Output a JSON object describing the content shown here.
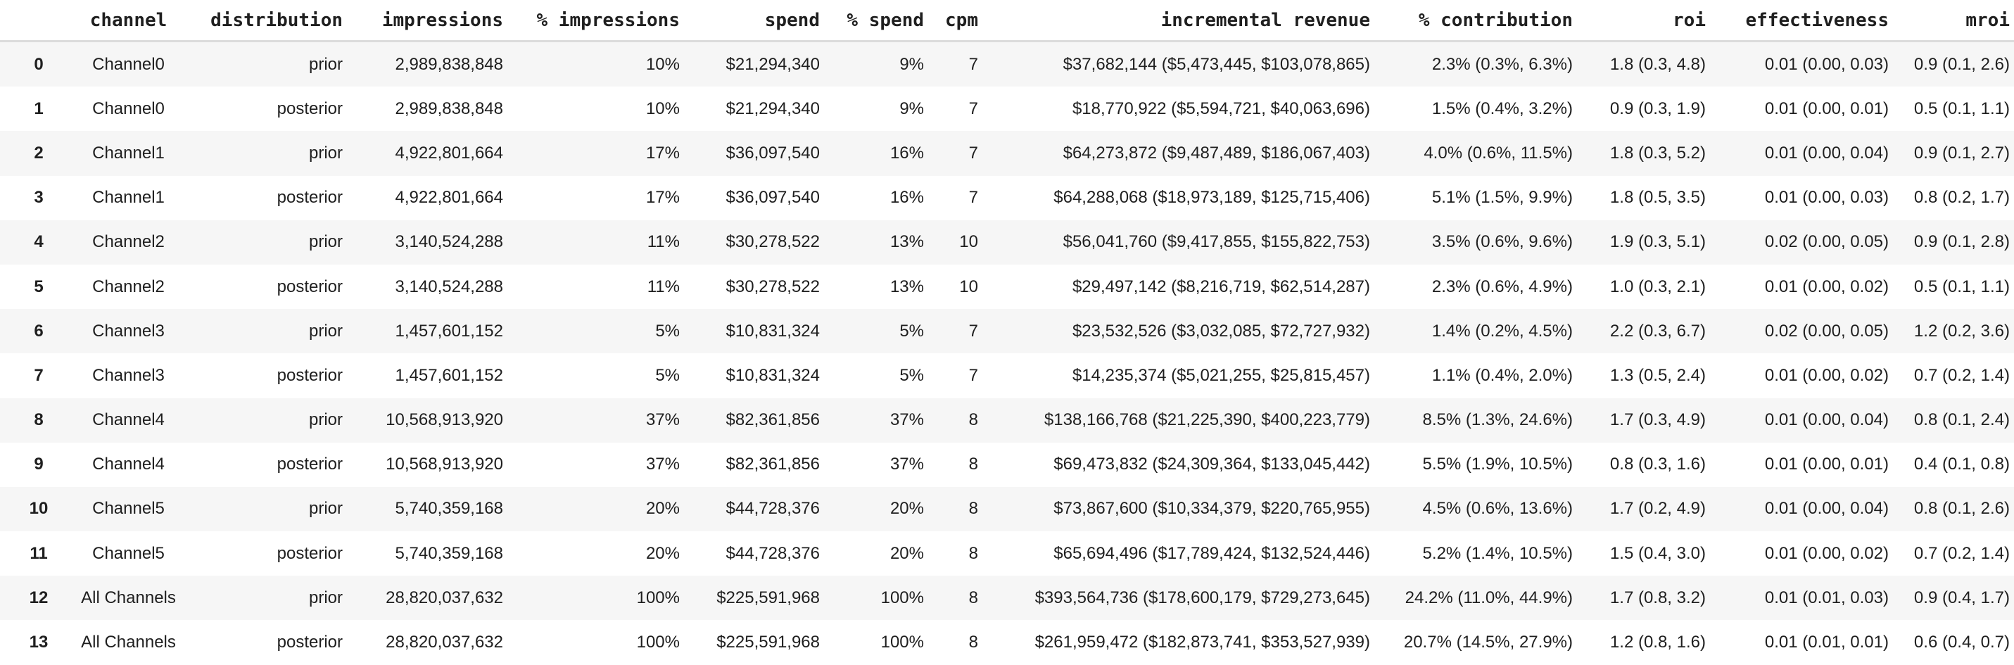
{
  "colors": {
    "background": "#ffffff",
    "row_stripe": "#f6f6f6",
    "header_divider": "#dcdcdc",
    "text": "#1f1f1f"
  },
  "chart_data": {
    "type": "table",
    "title": "",
    "columns": [
      "",
      "channel",
      "distribution",
      "impressions",
      "% impressions",
      "spend",
      "% spend",
      "cpm",
      "incremental revenue",
      "% contribution",
      "roi",
      "effectiveness",
      "mroi"
    ],
    "column_keys": [
      "idx",
      "channel",
      "distribution",
      "impressions",
      "pct-impressions",
      "spend",
      "pct-spend",
      "cpm",
      "incremental-revenue",
      "pct-contribution",
      "roi",
      "effectiveness",
      "mroi"
    ],
    "column_aligns": [
      "center",
      "center",
      "right",
      "right",
      "right",
      "right",
      "right",
      "right",
      "right",
      "right",
      "right",
      "right",
      "right"
    ],
    "rows": [
      [
        "0",
        "Channel0",
        "prior",
        "2,989,838,848",
        "10%",
        "$21,294,340",
        "9%",
        "7",
        "$37,682,144 ($5,473,445, $103,078,865)",
        "2.3% (0.3%, 6.3%)",
        "1.8 (0.3, 4.8)",
        "0.01 (0.00, 0.03)",
        "0.9 (0.1, 2.6)"
      ],
      [
        "1",
        "Channel0",
        "posterior",
        "2,989,838,848",
        "10%",
        "$21,294,340",
        "9%",
        "7",
        "$18,770,922 ($5,594,721, $40,063,696)",
        "1.5% (0.4%, 3.2%)",
        "0.9 (0.3, 1.9)",
        "0.01 (0.00, 0.01)",
        "0.5 (0.1, 1.1)"
      ],
      [
        "2",
        "Channel1",
        "prior",
        "4,922,801,664",
        "17%",
        "$36,097,540",
        "16%",
        "7",
        "$64,273,872 ($9,487,489, $186,067,403)",
        "4.0% (0.6%, 11.5%)",
        "1.8 (0.3, 5.2)",
        "0.01 (0.00, 0.04)",
        "0.9 (0.1, 2.7)"
      ],
      [
        "3",
        "Channel1",
        "posterior",
        "4,922,801,664",
        "17%",
        "$36,097,540",
        "16%",
        "7",
        "$64,288,068 ($18,973,189, $125,715,406)",
        "5.1% (1.5%, 9.9%)",
        "1.8 (0.5, 3.5)",
        "0.01 (0.00, 0.03)",
        "0.8 (0.2, 1.7)"
      ],
      [
        "4",
        "Channel2",
        "prior",
        "3,140,524,288",
        "11%",
        "$30,278,522",
        "13%",
        "10",
        "$56,041,760 ($9,417,855, $155,822,753)",
        "3.5% (0.6%, 9.6%)",
        "1.9 (0.3, 5.1)",
        "0.02 (0.00, 0.05)",
        "0.9 (0.1, 2.8)"
      ],
      [
        "5",
        "Channel2",
        "posterior",
        "3,140,524,288",
        "11%",
        "$30,278,522",
        "13%",
        "10",
        "$29,497,142 ($8,216,719, $62,514,287)",
        "2.3% (0.6%, 4.9%)",
        "1.0 (0.3, 2.1)",
        "0.01 (0.00, 0.02)",
        "0.5 (0.1, 1.1)"
      ],
      [
        "6",
        "Channel3",
        "prior",
        "1,457,601,152",
        "5%",
        "$10,831,324",
        "5%",
        "7",
        "$23,532,526 ($3,032,085, $72,727,932)",
        "1.4% (0.2%, 4.5%)",
        "2.2 (0.3, 6.7)",
        "0.02 (0.00, 0.05)",
        "1.2 (0.2, 3.6)"
      ],
      [
        "7",
        "Channel3",
        "posterior",
        "1,457,601,152",
        "5%",
        "$10,831,324",
        "5%",
        "7",
        "$14,235,374 ($5,021,255, $25,815,457)",
        "1.1% (0.4%, 2.0%)",
        "1.3 (0.5, 2.4)",
        "0.01 (0.00, 0.02)",
        "0.7 (0.2, 1.4)"
      ],
      [
        "8",
        "Channel4",
        "prior",
        "10,568,913,920",
        "37%",
        "$82,361,856",
        "37%",
        "8",
        "$138,166,768 ($21,225,390, $400,223,779)",
        "8.5% (1.3%, 24.6%)",
        "1.7 (0.3, 4.9)",
        "0.01 (0.00, 0.04)",
        "0.8 (0.1, 2.4)"
      ],
      [
        "9",
        "Channel4",
        "posterior",
        "10,568,913,920",
        "37%",
        "$82,361,856",
        "37%",
        "8",
        "$69,473,832 ($24,309,364, $133,045,442)",
        "5.5% (1.9%, 10.5%)",
        "0.8 (0.3, 1.6)",
        "0.01 (0.00, 0.01)",
        "0.4 (0.1, 0.8)"
      ],
      [
        "10",
        "Channel5",
        "prior",
        "5,740,359,168",
        "20%",
        "$44,728,376",
        "20%",
        "8",
        "$73,867,600 ($10,334,379, $220,765,955)",
        "4.5% (0.6%, 13.6%)",
        "1.7 (0.2, 4.9)",
        "0.01 (0.00, 0.04)",
        "0.8 (0.1, 2.6)"
      ],
      [
        "11",
        "Channel5",
        "posterior",
        "5,740,359,168",
        "20%",
        "$44,728,376",
        "20%",
        "8",
        "$65,694,496 ($17,789,424, $132,524,446)",
        "5.2% (1.4%, 10.5%)",
        "1.5 (0.4, 3.0)",
        "0.01 (0.00, 0.02)",
        "0.7 (0.2, 1.4)"
      ],
      [
        "12",
        "All Channels",
        "prior",
        "28,820,037,632",
        "100%",
        "$225,591,968",
        "100%",
        "8",
        "$393,564,736 ($178,600,179, $729,273,645)",
        "24.2% (11.0%, 44.9%)",
        "1.7 (0.8, 3.2)",
        "0.01 (0.01, 0.03)",
        "0.9 (0.4, 1.7)"
      ],
      [
        "13",
        "All Channels",
        "posterior",
        "28,820,037,632",
        "100%",
        "$225,591,968",
        "100%",
        "8",
        "$261,959,472 ($182,873,741, $353,527,939)",
        "20.7% (14.5%, 27.9%)",
        "1.2 (0.8, 1.6)",
        "0.01 (0.01, 0.01)",
        "0.6 (0.4, 0.7)"
      ]
    ],
    "layout": {
      "grid": "row-striping",
      "header_position": "top",
      "legend": "none"
    }
  }
}
